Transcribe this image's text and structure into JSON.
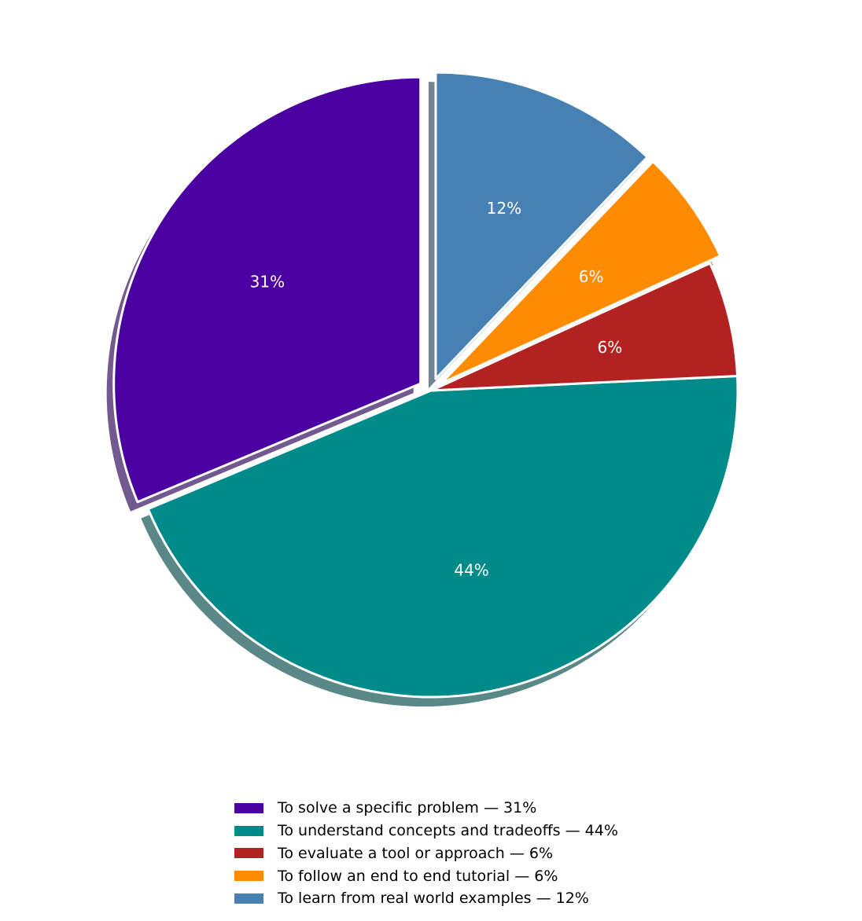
{
  "chart_data": {
    "type": "pie",
    "title": "",
    "start_angle_deg": 90,
    "direction": "counterclockwise",
    "shadow": true,
    "legend_position": "bottom-center",
    "slices": [
      {
        "label": "To solve a specific problem — 31%",
        "value": 31,
        "pct_label": "31%",
        "color": "#4b00a1",
        "exploded": true
      },
      {
        "label": "To understand concepts and tradeoffs — 44%",
        "value": 44,
        "pct_label": "44%",
        "color": "#008b8a",
        "exploded": false
      },
      {
        "label": "To evaluate a tool or approach — 6%",
        "value": 6,
        "pct_label": "6%",
        "color": "#b22221",
        "exploded": false
      },
      {
        "label": "To follow an end to end tutorial — 6%",
        "value": 6,
        "pct_label": "6%",
        "color": "#ff8c00",
        "exploded": true
      },
      {
        "label": "To learn from real world examples — 12%",
        "value": 12,
        "pct_label": "12%",
        "color": "#4781b4",
        "exploded": true
      }
    ]
  }
}
